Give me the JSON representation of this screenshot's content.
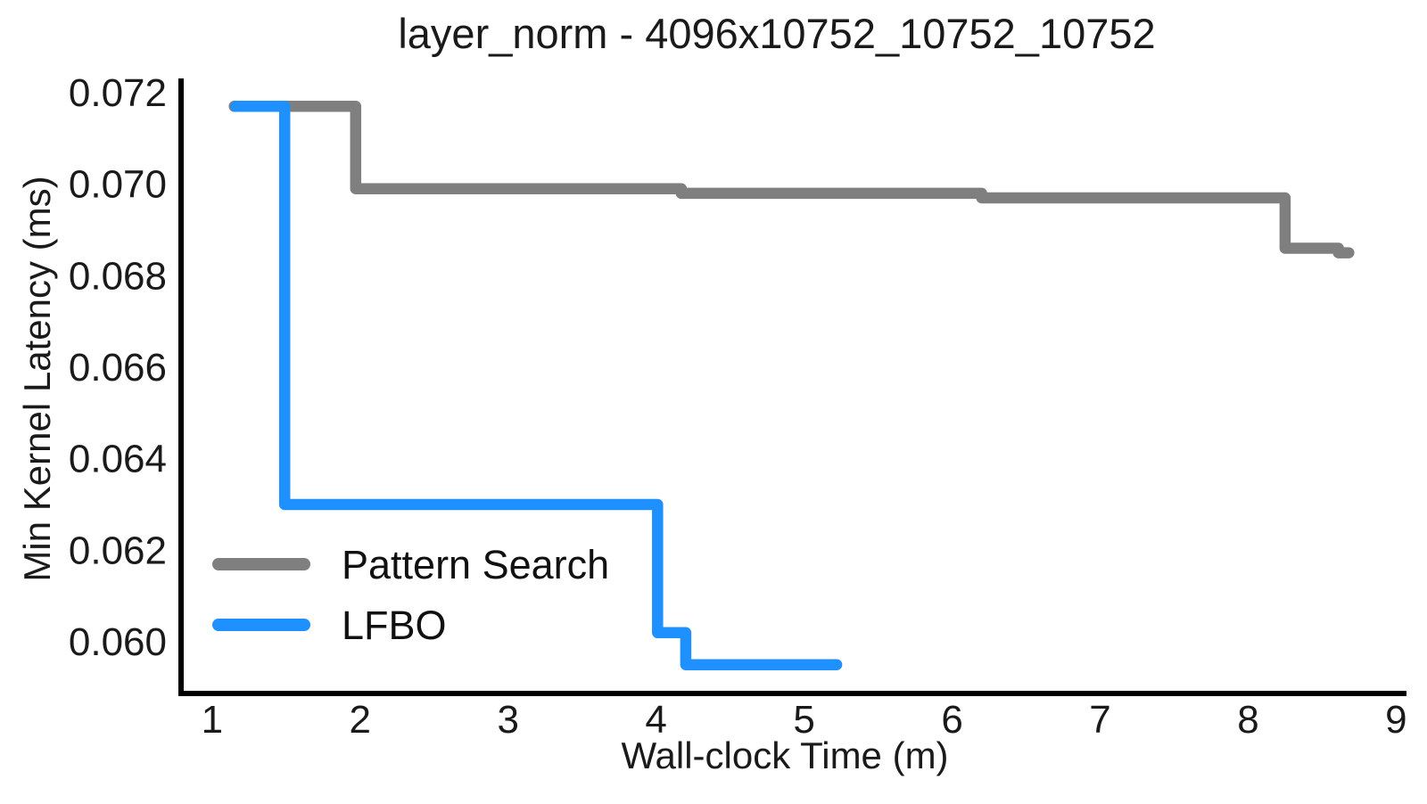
{
  "chart_data": {
    "type": "line",
    "subtype": "step-post",
    "title": "layer_norm - 4096x10752_10752_10752",
    "xlabel": "Wall-clock Time (m)",
    "ylabel": "Min Kernel Latency (ms)",
    "xlim": [
      0.79,
      9.07
    ],
    "ylim": [
      0.05893,
      0.07231
    ],
    "x_ticks": [
      1,
      2,
      3,
      4,
      5,
      6,
      7,
      8,
      9
    ],
    "x_tick_labels": [
      "1",
      "2",
      "3",
      "4",
      "5",
      "6",
      "7",
      "8",
      "9"
    ],
    "y_ticks": [
      0.06,
      0.062,
      0.064,
      0.066,
      0.068,
      0.07,
      0.072
    ],
    "y_tick_labels": [
      "0.060",
      "0.062",
      "0.064",
      "0.066",
      "0.068",
      "0.070",
      "0.072"
    ],
    "grid": false,
    "legend_position": "lower left",
    "line_width": 12.5,
    "axis_color": "#000000",
    "text_color": "#1a1a1a",
    "series": [
      {
        "name": "Pattern Search",
        "color": "#7f7f7f",
        "x": [
          1.15,
          1.97,
          4.17,
          6.2,
          8.25,
          8.61
        ],
        "y": [
          0.0717,
          0.0699,
          0.0698,
          0.0697,
          0.0686,
          0.0685
        ],
        "x_end": 8.68
      },
      {
        "name": "LFBO",
        "color": "#1e90ff",
        "x": [
          1.16,
          1.49,
          4.01,
          4.2
        ],
        "y": [
          0.0717,
          0.063,
          0.0602,
          0.0595
        ],
        "x_end": 5.22
      }
    ]
  }
}
